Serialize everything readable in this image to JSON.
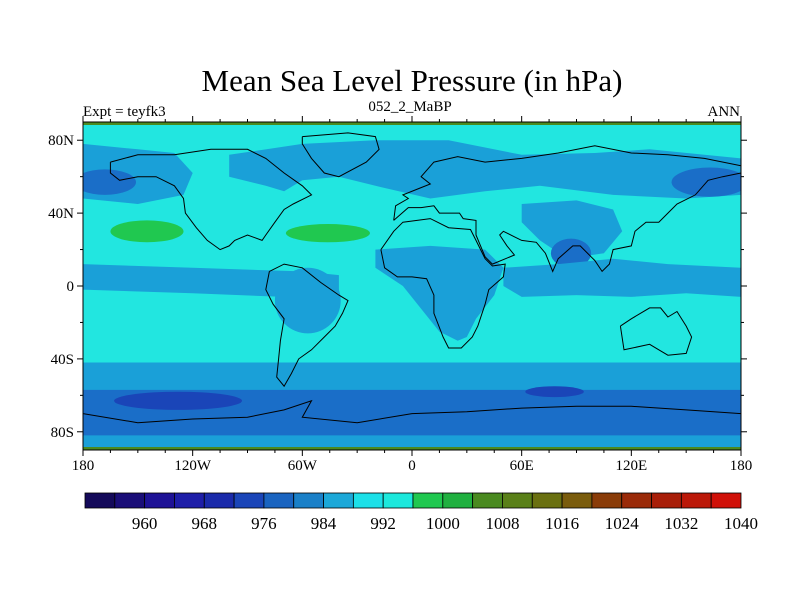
{
  "title": "Mean Sea Level Pressure (in hPa)",
  "left_subtitle": "Expt = teyfk3",
  "center_subtitle": "052_2_MaBP",
  "right_subtitle": "ANN",
  "axes": {
    "lon_range": [
      -180,
      180
    ],
    "lat_range": [
      -90,
      90
    ],
    "x_ticks": [
      {
        "value": -180,
        "label": "180"
      },
      {
        "value": -120,
        "label": "120W"
      },
      {
        "value": -60,
        "label": "60W"
      },
      {
        "value": 0,
        "label": "0"
      },
      {
        "value": 60,
        "label": "60E"
      },
      {
        "value": 120,
        "label": "120E"
      },
      {
        "value": 180,
        "label": "180"
      }
    ],
    "y_ticks": [
      {
        "value": 80,
        "label": "80N"
      },
      {
        "value": 40,
        "label": "40N"
      },
      {
        "value": 0,
        "label": "0"
      },
      {
        "value": -40,
        "label": "40S"
      },
      {
        "value": -80,
        "label": "80S"
      }
    ]
  },
  "colorbar": {
    "unit": "hPa",
    "colors": [
      "#140a5a",
      "#1a0e78",
      "#1e1296",
      "#1e1ea8",
      "#1a2aaa",
      "#1a45b8",
      "#1a64c0",
      "#1a80c8",
      "#1ca8d8",
      "#1ce0e8",
      "#1ce8dc",
      "#20c850",
      "#20b040",
      "#4a8a20",
      "#5a8018",
      "#6a7010",
      "#7a5c0c",
      "#8a3c08",
      "#9a2a08",
      "#a81e08",
      "#bb1808",
      "#d01008"
    ],
    "labels": [
      {
        "index": 2,
        "text": "960"
      },
      {
        "index": 4,
        "text": "968"
      },
      {
        "index": 6,
        "text": "976"
      },
      {
        "index": 8,
        "text": "984"
      },
      {
        "index": 10,
        "text": "992"
      },
      {
        "index": 12,
        "text": "1000"
      },
      {
        "index": 14,
        "text": "1008"
      },
      {
        "index": 16,
        "text": "1016"
      },
      {
        "index": 18,
        "text": "1024"
      },
      {
        "index": 20,
        "text": "1032"
      },
      {
        "index": 22,
        "text": "1040"
      }
    ]
  },
  "field_colors": {
    "background": "#22e6e0",
    "low_986": "#1aa0d8",
    "low_982": "#1a6ec8",
    "low_976": "#1a45b8",
    "high_1008": "#20c850",
    "edge": "#4a8a20"
  },
  "pressure_regions": [
    {
      "name": "southern-ocean-band",
      "level": "low_986",
      "lons": [
        -180,
        180,
        180,
        -180
      ],
      "lats": [
        -42,
        -42,
        -90,
        -90
      ]
    },
    {
      "name": "southern-ocean-deep-band",
      "level": "low_982",
      "lons": [
        -180,
        180,
        180,
        -180
      ],
      "lats": [
        -57,
        -57,
        -82,
        -82
      ]
    },
    {
      "name": "southern-ocean-low-center",
      "level": "low_976",
      "ellipse": {
        "lon": -128,
        "lat": -63,
        "rlon": 35,
        "rlat": 5
      }
    },
    {
      "name": "indian-ocean-low-center",
      "level": "low_976",
      "ellipse": {
        "lon": 78,
        "lat": -58,
        "rlon": 16,
        "rlat": 3
      }
    },
    {
      "name": "north-pacific-low",
      "level": "low_986",
      "lons": [
        -180,
        -150,
        -130,
        -120,
        -125,
        -150,
        -180
      ],
      "lats": [
        78,
        75,
        73,
        62,
        50,
        45,
        48
      ]
    },
    {
      "name": "north-pacific-low-core",
      "level": "low_982",
      "ellipse": {
        "lon": -168,
        "lat": 57,
        "rlon": 17,
        "rlat": 7
      }
    },
    {
      "name": "arctic-atlantic-low",
      "level": "low_986",
      "lons": [
        -100,
        -60,
        -20,
        20,
        60,
        100,
        130,
        160,
        180,
        180,
        150,
        110,
        70,
        40,
        10,
        -20,
        -40,
        -60,
        -70,
        -80,
        -100
      ],
      "lats": [
        72,
        78,
        80,
        80,
        72,
        73,
        75,
        72,
        70,
        50,
        48,
        50,
        55,
        52,
        48,
        55,
        60,
        58,
        52,
        55,
        60
      ]
    },
    {
      "name": "north-pacific-east-low-core",
      "level": "low_982",
      "ellipse": {
        "lon": 163,
        "lat": 57,
        "rlon": 21,
        "rlat": 8
      }
    },
    {
      "name": "asian-low",
      "level": "low_986",
      "lons": [
        60,
        90,
        110,
        115,
        105,
        85,
        70,
        60
      ],
      "lats": [
        45,
        47,
        42,
        30,
        18,
        15,
        25,
        35
      ]
    },
    {
      "name": "asian-low-core",
      "level": "low_982",
      "ellipse": {
        "lon": 87,
        "lat": 18,
        "rlon": 11,
        "rlat": 8
      }
    },
    {
      "name": "equatorial-pacific-trough",
      "level": "low_986",
      "lons": [
        -180,
        -120,
        -60,
        -40,
        -40,
        -70,
        -120,
        -180
      ],
      "lats": [
        12,
        10,
        8,
        6,
        -4,
        -6,
        -4,
        -2
      ]
    },
    {
      "name": "south-america-low",
      "level": "low_986",
      "ellipse": {
        "lon": -57,
        "lat": -8,
        "rlon": 18,
        "rlat": 18
      }
    },
    {
      "name": "africa-low",
      "level": "low_986",
      "lons": [
        -20,
        10,
        40,
        50,
        45,
        35,
        30,
        25,
        15,
        -5,
        -20
      ],
      "lats": [
        20,
        22,
        20,
        10,
        -5,
        -18,
        -28,
        -30,
        -25,
        0,
        10
      ]
    },
    {
      "name": "indo-pacific-trough",
      "level": "low_986",
      "lons": [
        50,
        80,
        110,
        140,
        180,
        180,
        150,
        120,
        90,
        60,
        50
      ],
      "lats": [
        10,
        12,
        15,
        12,
        10,
        -6,
        -4,
        -6,
        -5,
        -6,
        0
      ]
    },
    {
      "name": "north-pacific-high",
      "level": "high_1008",
      "ellipse": {
        "lon": -145,
        "lat": 30,
        "rlon": 20,
        "rlat": 6
      }
    },
    {
      "name": "north-atlantic-high",
      "level": "high_1008",
      "ellipse": {
        "lon": -46,
        "lat": 29,
        "rlon": 23,
        "rlat": 5
      }
    }
  ],
  "coastlines": [
    {
      "name": "north-america",
      "points": [
        [
          -165,
          68
        ],
        [
          -150,
          72
        ],
        [
          -130,
          72
        ],
        [
          -110,
          75
        ],
        [
          -90,
          75
        ],
        [
          -80,
          70
        ],
        [
          -70,
          62
        ],
        [
          -60,
          55
        ],
        [
          -55,
          50
        ],
        [
          -65,
          45
        ],
        [
          -70,
          42
        ],
        [
          -75,
          35
        ],
        [
          -80,
          28
        ],
        [
          -82,
          25
        ],
        [
          -90,
          28
        ],
        [
          -97,
          25
        ],
        [
          -100,
          22
        ],
        [
          -105,
          20
        ],
        [
          -112,
          25
        ],
        [
          -118,
          32
        ],
        [
          -124,
          40
        ],
        [
          -125,
          48
        ],
        [
          -130,
          55
        ],
        [
          -140,
          60
        ],
        [
          -150,
          60
        ],
        [
          -160,
          58
        ],
        [
          -165,
          62
        ],
        [
          -165,
          68
        ]
      ]
    },
    {
      "name": "south-america",
      "points": [
        [
          -78,
          8
        ],
        [
          -70,
          12
        ],
        [
          -60,
          10
        ],
        [
          -50,
          2
        ],
        [
          -40,
          -5
        ],
        [
          -35,
          -8
        ],
        [
          -38,
          -15
        ],
        [
          -42,
          -22
        ],
        [
          -48,
          -28
        ],
        [
          -55,
          -35
        ],
        [
          -62,
          -40
        ],
        [
          -66,
          -48
        ],
        [
          -70,
          -55
        ],
        [
          -74,
          -50
        ],
        [
          -73,
          -40
        ],
        [
          -72,
          -30
        ],
        [
          -70,
          -18
        ],
        [
          -76,
          -10
        ],
        [
          -80,
          -2
        ],
        [
          -78,
          8
        ]
      ]
    },
    {
      "name": "greenland",
      "points": [
        [
          -60,
          82
        ],
        [
          -35,
          84
        ],
        [
          -20,
          82
        ],
        [
          -18,
          75
        ],
        [
          -25,
          68
        ],
        [
          -40,
          60
        ],
        [
          -48,
          62
        ],
        [
          -55,
          70
        ],
        [
          -60,
          78
        ],
        [
          -60,
          82
        ]
      ]
    },
    {
      "name": "africa",
      "points": [
        [
          -17,
          20
        ],
        [
          -10,
          30
        ],
        [
          -5,
          35
        ],
        [
          10,
          37
        ],
        [
          20,
          32
        ],
        [
          32,
          31
        ],
        [
          35,
          25
        ],
        [
          40,
          15
        ],
        [
          44,
          11
        ],
        [
          51,
          12
        ],
        [
          50,
          5
        ],
        [
          42,
          -2
        ],
        [
          40,
          -10
        ],
        [
          36,
          -22
        ],
        [
          33,
          -28
        ],
        [
          27,
          -34
        ],
        [
          20,
          -34
        ],
        [
          17,
          -28
        ],
        [
          12,
          -15
        ],
        [
          12,
          -5
        ],
        [
          8,
          4
        ],
        [
          0,
          5
        ],
        [
          -8,
          5
        ],
        [
          -15,
          10
        ],
        [
          -17,
          20
        ]
      ]
    },
    {
      "name": "eurasia",
      "points": [
        [
          -10,
          36
        ],
        [
          -9,
          44
        ],
        [
          -2,
          48
        ],
        [
          -5,
          50
        ],
        [
          5,
          54
        ],
        [
          10,
          56
        ],
        [
          5,
          60
        ],
        [
          12,
          68
        ],
        [
          25,
          71
        ],
        [
          40,
          68
        ],
        [
          60,
          70
        ],
        [
          80,
          73
        ],
        [
          100,
          77
        ],
        [
          120,
          73
        ],
        [
          140,
          72
        ],
        [
          160,
          70
        ],
        [
          180,
          66
        ],
        [
          180,
          62
        ],
        [
          170,
          60
        ],
        [
          162,
          58
        ],
        [
          155,
          50
        ],
        [
          145,
          45
        ],
        [
          140,
          40
        ],
        [
          135,
          35
        ],
        [
          128,
          35
        ],
        [
          122,
          30
        ],
        [
          120,
          22
        ],
        [
          110,
          20
        ],
        [
          108,
          12
        ],
        [
          104,
          8
        ],
        [
          100,
          14
        ],
        [
          98,
          16
        ],
        [
          92,
          22
        ],
        [
          88,
          22
        ],
        [
          80,
          15
        ],
        [
          77,
          8
        ],
        [
          73,
          18
        ],
        [
          68,
          24
        ],
        [
          60,
          25
        ],
        [
          56,
          27
        ],
        [
          50,
          30
        ],
        [
          48,
          28
        ],
        [
          52,
          22
        ],
        [
          56,
          17
        ],
        [
          44,
          12
        ],
        [
          40,
          16
        ],
        [
          35,
          28
        ],
        [
          35,
          36
        ],
        [
          28,
          37
        ],
        [
          26,
          40
        ],
        [
          20,
          40
        ],
        [
          15,
          40
        ],
        [
          12,
          44
        ],
        [
          5,
          43
        ],
        [
          -2,
          43
        ],
        [
          -10,
          36
        ]
      ]
    },
    {
      "name": "australia",
      "points": [
        [
          114,
          -22
        ],
        [
          120,
          -18
        ],
        [
          130,
          -12
        ],
        [
          136,
          -12
        ],
        [
          140,
          -17
        ],
        [
          145,
          -14
        ],
        [
          150,
          -22
        ],
        [
          153,
          -28
        ],
        [
          150,
          -37
        ],
        [
          140,
          -38
        ],
        [
          135,
          -35
        ],
        [
          130,
          -32
        ],
        [
          116,
          -35
        ],
        [
          114,
          -22
        ]
      ]
    },
    {
      "name": "antarctica",
      "points": [
        [
          -180,
          -70
        ],
        [
          -150,
          -75
        ],
        [
          -120,
          -73
        ],
        [
          -90,
          -72
        ],
        [
          -70,
          -68
        ],
        [
          -55,
          -63
        ],
        [
          -60,
          -72
        ],
        [
          -30,
          -75
        ],
        [
          0,
          -70
        ],
        [
          30,
          -69
        ],
        [
          60,
          -67
        ],
        [
          90,
          -66
        ],
        [
          120,
          -66
        ],
        [
          150,
          -68
        ],
        [
          180,
          -70
        ]
      ]
    }
  ]
}
